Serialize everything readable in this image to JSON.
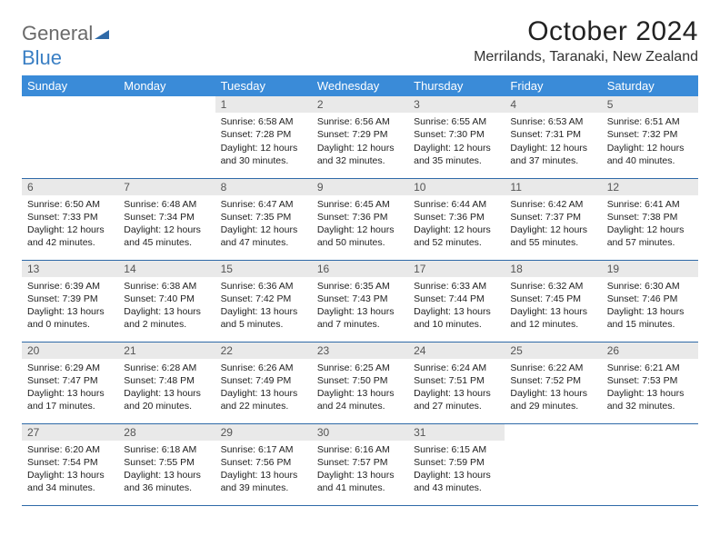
{
  "logo": {
    "line1": "General",
    "line2": "Blue"
  },
  "title": "October 2024",
  "location": "Merrilands, Taranaki, New Zealand",
  "colors": {
    "header_bg": "#3a8bd8",
    "header_text": "#ffffff",
    "daynum_bg": "#e9e9e9",
    "border": "#2f6aa8",
    "logo_general": "#6a6a6a",
    "logo_blue": "#3a7fc4"
  },
  "day_headers": [
    "Sunday",
    "Monday",
    "Tuesday",
    "Wednesday",
    "Thursday",
    "Friday",
    "Saturday"
  ],
  "weeks": [
    [
      null,
      null,
      {
        "n": "1",
        "sr": "6:58 AM",
        "ss": "7:28 PM",
        "dl": "12 hours and 30 minutes."
      },
      {
        "n": "2",
        "sr": "6:56 AM",
        "ss": "7:29 PM",
        "dl": "12 hours and 32 minutes."
      },
      {
        "n": "3",
        "sr": "6:55 AM",
        "ss": "7:30 PM",
        "dl": "12 hours and 35 minutes."
      },
      {
        "n": "4",
        "sr": "6:53 AM",
        "ss": "7:31 PM",
        "dl": "12 hours and 37 minutes."
      },
      {
        "n": "5",
        "sr": "6:51 AM",
        "ss": "7:32 PM",
        "dl": "12 hours and 40 minutes."
      }
    ],
    [
      {
        "n": "6",
        "sr": "6:50 AM",
        "ss": "7:33 PM",
        "dl": "12 hours and 42 minutes."
      },
      {
        "n": "7",
        "sr": "6:48 AM",
        "ss": "7:34 PM",
        "dl": "12 hours and 45 minutes."
      },
      {
        "n": "8",
        "sr": "6:47 AM",
        "ss": "7:35 PM",
        "dl": "12 hours and 47 minutes."
      },
      {
        "n": "9",
        "sr": "6:45 AM",
        "ss": "7:36 PM",
        "dl": "12 hours and 50 minutes."
      },
      {
        "n": "10",
        "sr": "6:44 AM",
        "ss": "7:36 PM",
        "dl": "12 hours and 52 minutes."
      },
      {
        "n": "11",
        "sr": "6:42 AM",
        "ss": "7:37 PM",
        "dl": "12 hours and 55 minutes."
      },
      {
        "n": "12",
        "sr": "6:41 AM",
        "ss": "7:38 PM",
        "dl": "12 hours and 57 minutes."
      }
    ],
    [
      {
        "n": "13",
        "sr": "6:39 AM",
        "ss": "7:39 PM",
        "dl": "13 hours and 0 minutes."
      },
      {
        "n": "14",
        "sr": "6:38 AM",
        "ss": "7:40 PM",
        "dl": "13 hours and 2 minutes."
      },
      {
        "n": "15",
        "sr": "6:36 AM",
        "ss": "7:42 PM",
        "dl": "13 hours and 5 minutes."
      },
      {
        "n": "16",
        "sr": "6:35 AM",
        "ss": "7:43 PM",
        "dl": "13 hours and 7 minutes."
      },
      {
        "n": "17",
        "sr": "6:33 AM",
        "ss": "7:44 PM",
        "dl": "13 hours and 10 minutes."
      },
      {
        "n": "18",
        "sr": "6:32 AM",
        "ss": "7:45 PM",
        "dl": "13 hours and 12 minutes."
      },
      {
        "n": "19",
        "sr": "6:30 AM",
        "ss": "7:46 PM",
        "dl": "13 hours and 15 minutes."
      }
    ],
    [
      {
        "n": "20",
        "sr": "6:29 AM",
        "ss": "7:47 PM",
        "dl": "13 hours and 17 minutes."
      },
      {
        "n": "21",
        "sr": "6:28 AM",
        "ss": "7:48 PM",
        "dl": "13 hours and 20 minutes."
      },
      {
        "n": "22",
        "sr": "6:26 AM",
        "ss": "7:49 PM",
        "dl": "13 hours and 22 minutes."
      },
      {
        "n": "23",
        "sr": "6:25 AM",
        "ss": "7:50 PM",
        "dl": "13 hours and 24 minutes."
      },
      {
        "n": "24",
        "sr": "6:24 AM",
        "ss": "7:51 PM",
        "dl": "13 hours and 27 minutes."
      },
      {
        "n": "25",
        "sr": "6:22 AM",
        "ss": "7:52 PM",
        "dl": "13 hours and 29 minutes."
      },
      {
        "n": "26",
        "sr": "6:21 AM",
        "ss": "7:53 PM",
        "dl": "13 hours and 32 minutes."
      }
    ],
    [
      {
        "n": "27",
        "sr": "6:20 AM",
        "ss": "7:54 PM",
        "dl": "13 hours and 34 minutes."
      },
      {
        "n": "28",
        "sr": "6:18 AM",
        "ss": "7:55 PM",
        "dl": "13 hours and 36 minutes."
      },
      {
        "n": "29",
        "sr": "6:17 AM",
        "ss": "7:56 PM",
        "dl": "13 hours and 39 minutes."
      },
      {
        "n": "30",
        "sr": "6:16 AM",
        "ss": "7:57 PM",
        "dl": "13 hours and 41 minutes."
      },
      {
        "n": "31",
        "sr": "6:15 AM",
        "ss": "7:59 PM",
        "dl": "13 hours and 43 minutes."
      },
      null,
      null
    ]
  ],
  "labels": {
    "sunrise": "Sunrise:",
    "sunset": "Sunset:",
    "daylight": "Daylight:"
  }
}
